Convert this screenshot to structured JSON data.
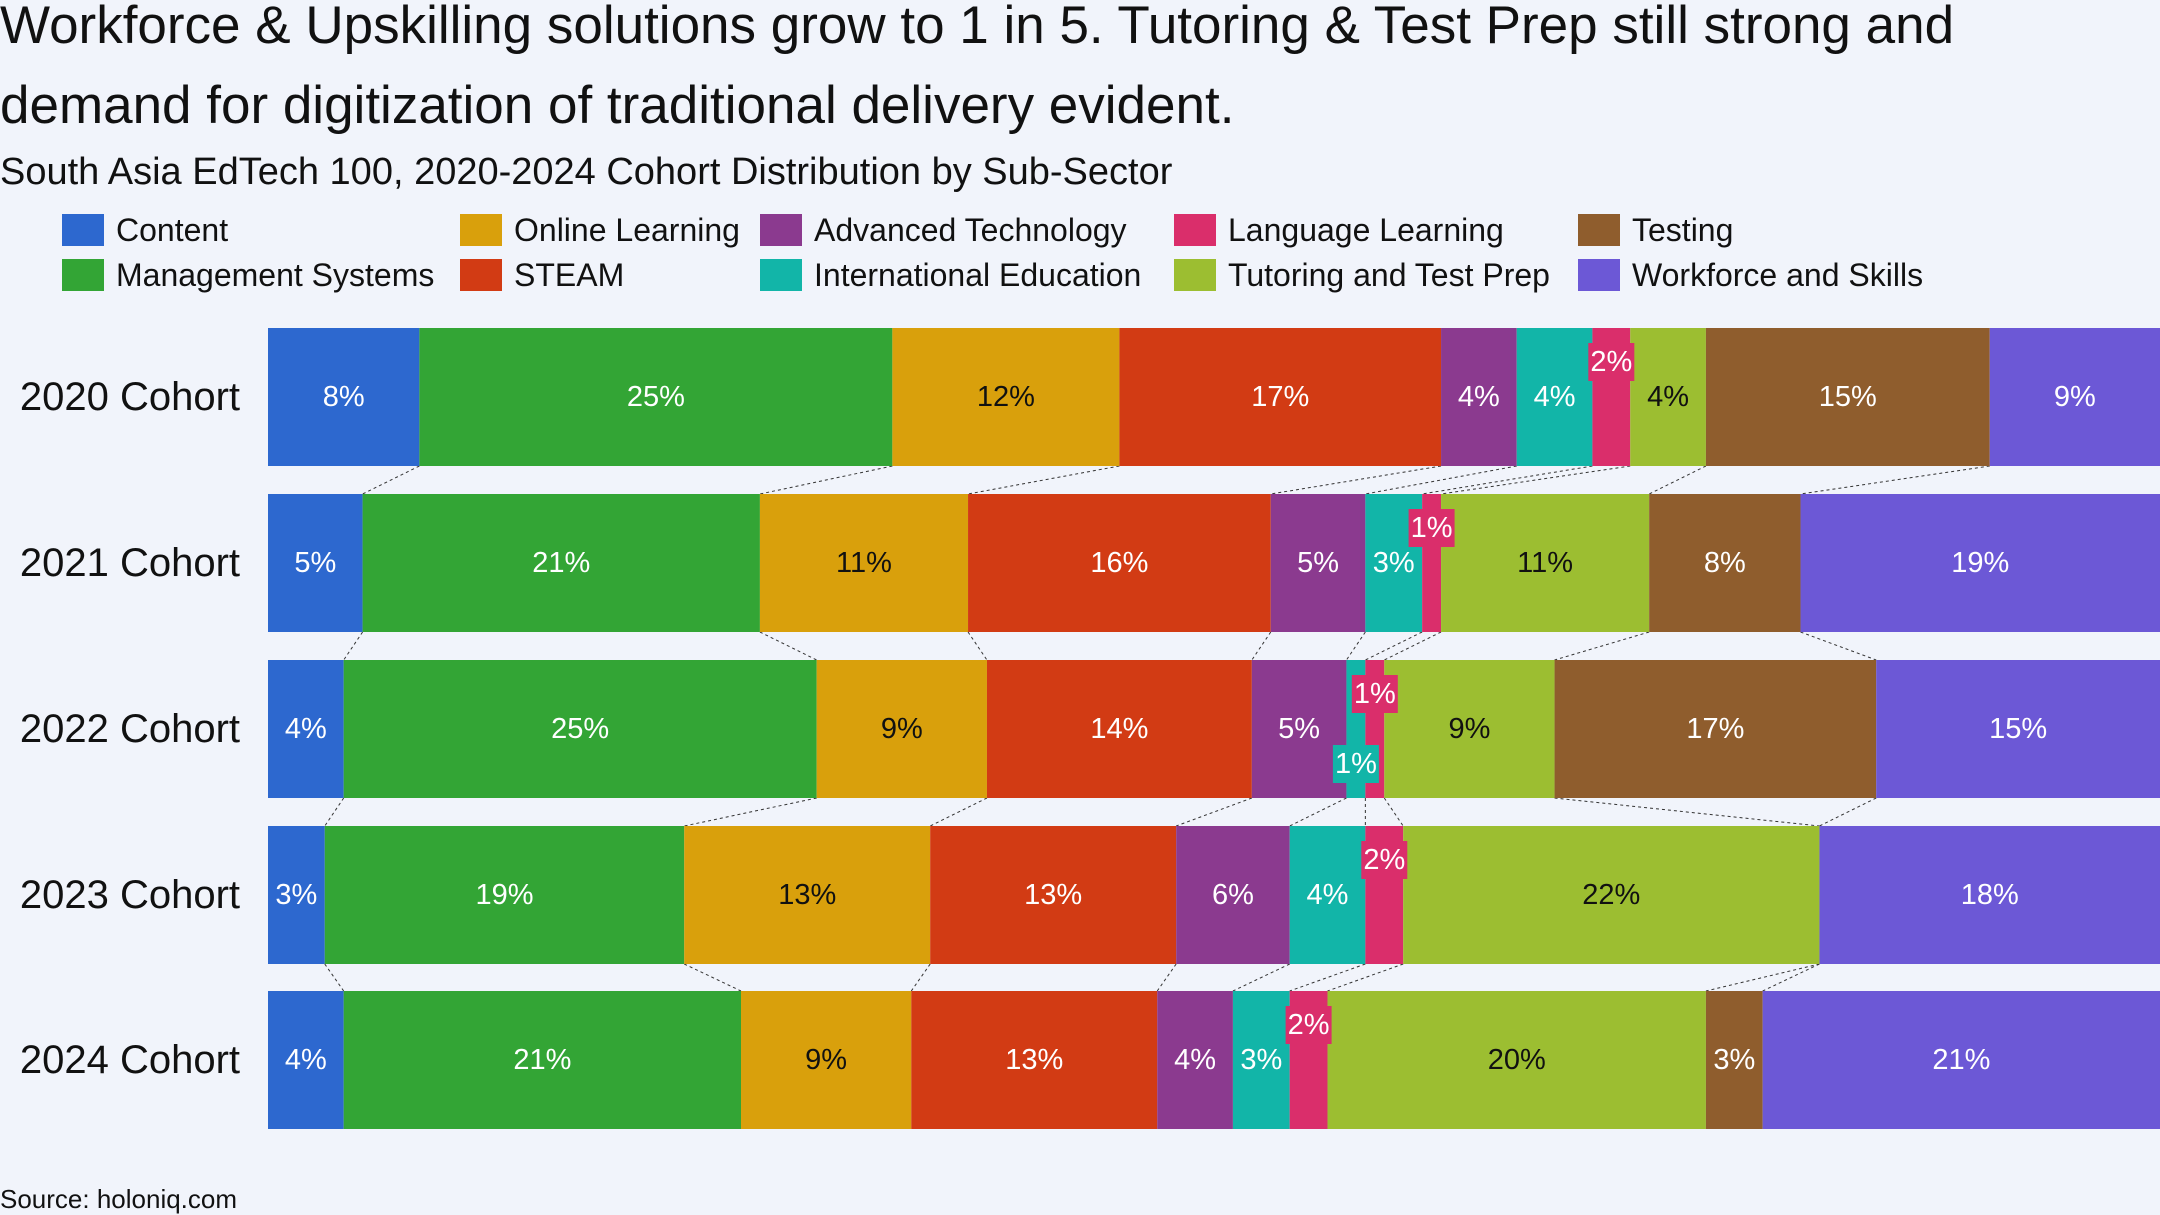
{
  "title": "Workforce & Upskilling solutions grow to 1 in 5. Tutoring & Test Prep still strong and demand for digitization of traditional delivery evident.",
  "subtitle": "South Asia EdTech 100, 2020-2024 Cohort Distribution by Sub-Sector",
  "source": "Source: holoniq.com",
  "chart_data": {
    "type": "bar",
    "orientation": "horizontal",
    "stacked": "100%",
    "categories": [
      "2020 Cohort",
      "2021 Cohort",
      "2022 Cohort",
      "2023 Cohort",
      "2024 Cohort"
    ],
    "series": [
      {
        "name": "Content",
        "color": "#2d68cf",
        "label_color": "#ffffff",
        "values": [
          8,
          5,
          4,
          3,
          4
        ]
      },
      {
        "name": "Management Systems",
        "color": "#33a535",
        "label_color": "#ffffff",
        "values": [
          25,
          21,
          25,
          19,
          21
        ]
      },
      {
        "name": "Online Learning",
        "color": "#d9a00c",
        "label_color": "#111111",
        "values": [
          12,
          11,
          9,
          13,
          9
        ]
      },
      {
        "name": "STEAM",
        "color": "#d23b14",
        "label_color": "#ffffff",
        "values": [
          17,
          16,
          14,
          13,
          13
        ]
      },
      {
        "name": "Advanced Technology",
        "color": "#8b3a8f",
        "label_color": "#ffffff",
        "values": [
          4,
          5,
          5,
          6,
          4
        ]
      },
      {
        "name": "International Education",
        "color": "#12b5a8",
        "label_color": "#ffffff",
        "values": [
          4,
          3,
          1,
          4,
          3
        ]
      },
      {
        "name": "Language Learning",
        "color": "#da2e6b",
        "label_color": "#ffffff",
        "values": [
          2,
          1,
          1,
          2,
          2
        ]
      },
      {
        "name": "Tutoring and Test Prep",
        "color": "#9cbe31",
        "label_color": "#111111",
        "values": [
          4,
          11,
          9,
          22,
          20
        ]
      },
      {
        "name": "Testing",
        "color": "#8f5d2d",
        "label_color": "#ffffff",
        "values": [
          15,
          8,
          17,
          0,
          3
        ]
      },
      {
        "name": "Workforce and Skills",
        "color": "#6c58d6",
        "label_color": "#ffffff",
        "values": [
          9,
          19,
          15,
          18,
          21
        ]
      }
    ],
    "value_suffix": "%",
    "legend_position": "top",
    "connector_lines": true
  }
}
